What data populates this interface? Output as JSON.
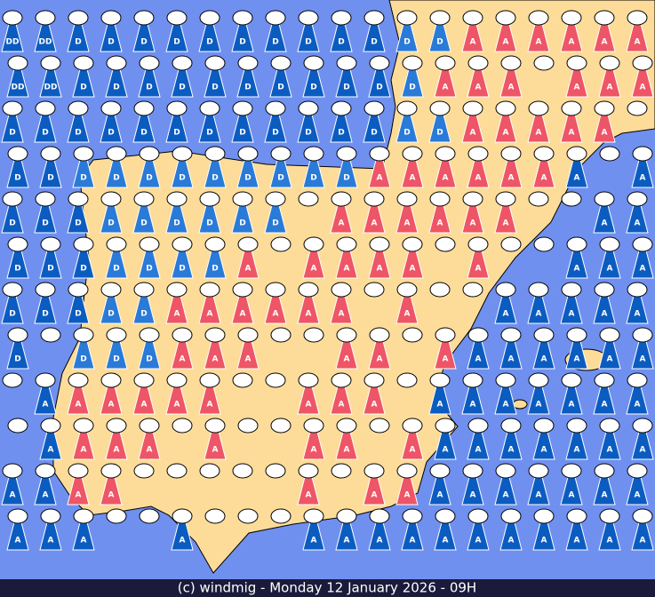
{
  "footer": "(c) windmig - Monday 12 January 2026 - 09H",
  "colors": {
    "sea": "#0b5cc0",
    "land_D": "#2a7ad8",
    "land_A": "#ee5566"
  },
  "grid": {
    "rows": [
      [
        "DD",
        "DD",
        "D",
        "D",
        "D",
        "D",
        "D",
        "D",
        "D",
        "D",
        "D",
        "D",
        "D",
        "D",
        "A",
        "A",
        "A",
        "A",
        "A",
        "A"
      ],
      [
        "DD",
        "DD",
        "D",
        "D",
        "D",
        "D",
        "D",
        "D",
        "D",
        "D",
        "D",
        "D",
        "D",
        "A",
        "A",
        "A",
        null,
        "A",
        "A",
        "A"
      ],
      [
        "D",
        "D",
        "D",
        "D",
        "D",
        "D",
        "D",
        "D",
        "D",
        "D",
        "D",
        "D",
        "D",
        "D",
        "A",
        "A",
        "A",
        "A",
        "A",
        null
      ],
      [
        "D",
        "D",
        "D",
        "D",
        "D",
        "D",
        "D",
        "D",
        "D",
        "D",
        "D",
        "A",
        "A",
        "A",
        "A",
        "A",
        "A",
        "A",
        null,
        "A"
      ],
      [
        "D",
        "D",
        "D",
        "D",
        "D",
        "D",
        "D",
        "D",
        "D",
        null,
        "A",
        "A",
        "A",
        "A",
        "A",
        "A",
        null,
        null,
        "A",
        "A"
      ],
      [
        "D",
        "D",
        "D",
        "D",
        "D",
        "D",
        "D",
        "A",
        null,
        "A",
        "A",
        "A",
        "A",
        null,
        "A",
        null,
        null,
        "A",
        "A",
        "A"
      ],
      [
        "D",
        "D",
        "D",
        "D",
        "D",
        "A",
        "A",
        "A",
        "A",
        "A",
        "A",
        null,
        "A",
        null,
        null,
        "A",
        "A",
        "A",
        "A",
        "A"
      ],
      [
        "D",
        null,
        "D",
        "D",
        "D",
        "A",
        "A",
        "A",
        null,
        null,
        "A",
        "A",
        null,
        "A",
        "A",
        "A",
        "A",
        "A",
        "A",
        "A"
      ],
      [
        null,
        "A",
        "A",
        "A",
        "A",
        "A",
        "A",
        null,
        null,
        "A",
        "A",
        "A",
        null,
        "A",
        "A",
        "A",
        "A",
        "A",
        "A",
        "A"
      ],
      [
        null,
        "A",
        "A",
        "A",
        "A",
        null,
        "A",
        null,
        null,
        "A",
        "A",
        null,
        "A",
        "A",
        "A",
        "A",
        "A",
        "A",
        "A",
        "A"
      ],
      [
        "A",
        "A",
        "A",
        "A",
        null,
        null,
        null,
        null,
        null,
        "A",
        null,
        "A",
        "A",
        "A",
        "A",
        "A",
        "A",
        "A",
        "A",
        "A"
      ],
      [
        "A",
        "A",
        "A",
        null,
        null,
        "A",
        null,
        null,
        null,
        "A",
        "A",
        "A",
        "A",
        "A",
        "A",
        "A",
        "A",
        "A",
        "A",
        "A"
      ]
    ]
  }
}
